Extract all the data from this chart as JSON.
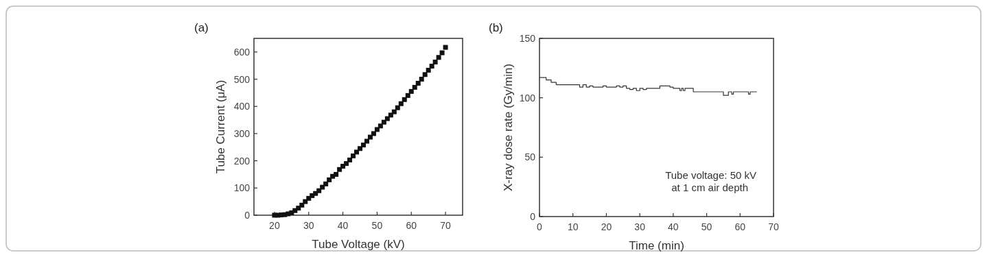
{
  "chart_data": [
    {
      "type": "scatter",
      "title": "(a)",
      "xlabel": "Tube Voltage (kV)",
      "ylabel": "Tube Current (μA)",
      "marker": "square",
      "color": "#111111",
      "x": [
        20,
        21,
        22,
        23,
        24,
        25,
        26,
        27,
        28,
        29,
        30,
        31,
        32,
        33,
        34,
        35,
        36,
        37,
        38,
        39,
        40,
        41,
        42,
        43,
        44,
        45,
        46,
        47,
        48,
        49,
        50,
        51,
        52,
        53,
        54,
        55,
        56,
        57,
        58,
        59,
        60,
        61,
        62,
        63,
        64,
        65,
        66,
        67,
        68,
        69,
        70
      ],
      "values": [
        0,
        0,
        1,
        2,
        5,
        9,
        17,
        26,
        37,
        50,
        62,
        72,
        80,
        90,
        103,
        115,
        130,
        143,
        150,
        168,
        180,
        190,
        203,
        218,
        232,
        245,
        258,
        272,
        287,
        300,
        315,
        328,
        342,
        355,
        368,
        380,
        395,
        410,
        425,
        440,
        455,
        470,
        485,
        500,
        517,
        533,
        548,
        563,
        580,
        597,
        617
      ],
      "xlim": [
        14,
        75
      ],
      "ylim": [
        0,
        650
      ],
      "xticks": [
        20,
        30,
        40,
        50,
        60,
        70
      ],
      "yticks": [
        0,
        100,
        200,
        300,
        400,
        500,
        600
      ],
      "grid": false
    },
    {
      "type": "step",
      "title": "(b)",
      "xlabel": "Time (min)",
      "ylabel": "X-ray dose rate (Gy/min)",
      "marker": "none",
      "line_style": "solid",
      "color": "#333333",
      "x": [
        0,
        2,
        3.5,
        5,
        12,
        13,
        14,
        15,
        16,
        19,
        20,
        23,
        24,
        25,
        26,
        27,
        28,
        29,
        30,
        31,
        32,
        36,
        39,
        40,
        42,
        42.5,
        43,
        43.5,
        46,
        55,
        56.5,
        57.5,
        58,
        62.5,
        63,
        65
      ],
      "values": [
        117,
        115,
        113,
        111,
        109,
        111,
        109,
        110,
        109,
        110,
        109,
        110,
        109,
        110,
        108,
        107,
        108,
        106,
        108,
        107,
        108,
        110,
        109,
        108,
        106,
        108,
        106,
        108,
        105,
        102,
        105,
        103,
        105,
        103,
        105,
        105
      ],
      "xlim": [
        0,
        70
      ],
      "ylim": [
        0,
        150
      ],
      "xticks": [
        0,
        10,
        20,
        30,
        40,
        50,
        60,
        70
      ],
      "yticks": [
        0,
        50,
        100,
        150
      ],
      "grid": false,
      "annotations": [
        "Tube voltage: 50 kV\nat 1 cm air depth"
      ]
    }
  ]
}
